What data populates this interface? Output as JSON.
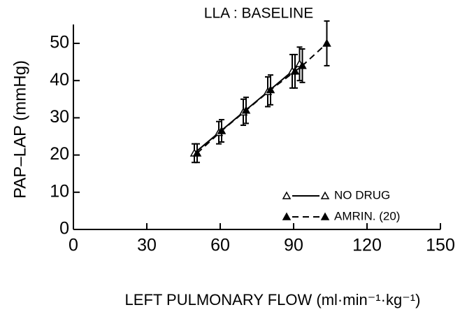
{
  "chart_data": {
    "type": "line",
    "title": "LLA : BASELINE",
    "x_label": "LEFT PULMONARY FLOW (ml·min⁻¹·kg⁻¹)",
    "y_label": "PAP–LAP (mmHg)",
    "xlim": [
      0,
      150
    ],
    "xticks": [
      0,
      30,
      60,
      90,
      120,
      150
    ],
    "ylim": [
      0,
      50
    ],
    "yticks": [
      0,
      10,
      20,
      30,
      40,
      50
    ],
    "legend": "lower right",
    "series": [
      {
        "name": "NO DRUG",
        "color": "#000000",
        "marker": "open-triangle",
        "dash": "solid",
        "x": [
          50,
          60,
          70,
          80,
          90,
          93
        ],
        "values": [
          20.5,
          26,
          31.5,
          37,
          42.5,
          44.5
        ],
        "errors": [
          2.5,
          3,
          3.5,
          4,
          4.5,
          4.5
        ]
      },
      {
        "name": "AMRIN. (20)",
        "color": "#000000",
        "marker": "filled-triangle",
        "dash": "dashed",
        "x": [
          50,
          60,
          70,
          80,
          90,
          93,
          103
        ],
        "values": [
          20.5,
          26.5,
          32,
          37.5,
          42.5,
          44,
          50
        ],
        "errors": [
          2.5,
          3,
          3.5,
          4,
          4.5,
          4.5,
          6
        ]
      }
    ]
  }
}
